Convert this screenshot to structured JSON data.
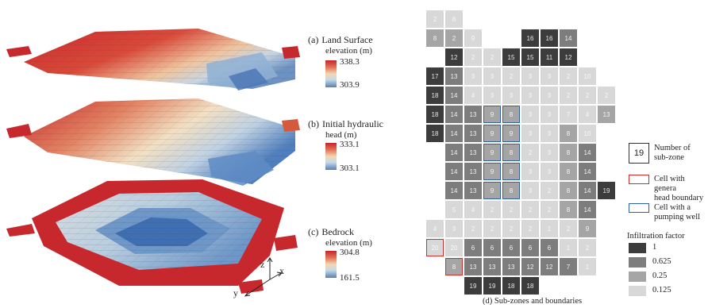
{
  "panels": [
    {
      "label": "(a)",
      "title_line1": "Land Surface",
      "title_line2": "elevation (m)",
      "max": "338.3",
      "min": "303.9"
    },
    {
      "label": "(b)",
      "title_line1": "Initial hydraulic",
      "title_line2": "head (m)",
      "max": "333.1",
      "min": "303.1"
    },
    {
      "label": "(c)",
      "title_line1": "Bedrock",
      "title_line2": "elevation (m)",
      "max": "304.8",
      "min": "161.5"
    }
  ],
  "axes": {
    "z": "z",
    "x": "x",
    "y": "y"
  },
  "grid": {
    "cells": [
      {
        "r": 0,
        "c": 0,
        "v": "2",
        "f": 4
      },
      {
        "r": 0,
        "c": 1,
        "v": "8",
        "f": 4
      },
      {
        "r": 1,
        "c": 0,
        "v": "8",
        "f": 3
      },
      {
        "r": 1,
        "c": 1,
        "v": "2",
        "f": 3
      },
      {
        "r": 1,
        "c": 2,
        "v": "9",
        "f": 4
      },
      {
        "r": 1,
        "c": 5,
        "v": "16",
        "f": 1
      },
      {
        "r": 1,
        "c": 6,
        "v": "16",
        "f": 1
      },
      {
        "r": 1,
        "c": 7,
        "v": "14",
        "f": 2
      },
      {
        "r": 2,
        "c": 1,
        "v": "12",
        "f": 1
      },
      {
        "r": 2,
        "c": 2,
        "v": "2",
        "f": 4
      },
      {
        "r": 2,
        "c": 3,
        "v": "2",
        "f": 4
      },
      {
        "r": 2,
        "c": 4,
        "v": "15",
        "f": 1
      },
      {
        "r": 2,
        "c": 5,
        "v": "15",
        "f": 1
      },
      {
        "r": 2,
        "c": 6,
        "v": "11",
        "f": 1
      },
      {
        "r": 2,
        "c": 7,
        "v": "12",
        "f": 1
      },
      {
        "r": 3,
        "c": 0,
        "v": "17",
        "f": 1
      },
      {
        "r": 3,
        "c": 1,
        "v": "13",
        "f": 2
      },
      {
        "r": 3,
        "c": 2,
        "v": "3",
        "f": 4
      },
      {
        "r": 3,
        "c": 3,
        "v": "3",
        "f": 4
      },
      {
        "r": 3,
        "c": 4,
        "v": "2",
        "f": 4
      },
      {
        "r": 3,
        "c": 5,
        "v": "3",
        "f": 4
      },
      {
        "r": 3,
        "c": 6,
        "v": "3",
        "f": 4
      },
      {
        "r": 3,
        "c": 7,
        "v": "2",
        "f": 4
      },
      {
        "r": 3,
        "c": 8,
        "v": "10",
        "f": 4
      },
      {
        "r": 4,
        "c": 0,
        "v": "18",
        "f": 1
      },
      {
        "r": 4,
        "c": 1,
        "v": "14",
        "f": 2
      },
      {
        "r": 4,
        "c": 2,
        "v": "4",
        "f": 4
      },
      {
        "r": 4,
        "c": 3,
        "v": "3",
        "f": 4
      },
      {
        "r": 4,
        "c": 4,
        "v": "3",
        "f": 4
      },
      {
        "r": 4,
        "c": 5,
        "v": "3",
        "f": 4
      },
      {
        "r": 4,
        "c": 6,
        "v": "3",
        "f": 4
      },
      {
        "r": 4,
        "c": 7,
        "v": "2",
        "f": 4
      },
      {
        "r": 4,
        "c": 8,
        "v": "2",
        "f": 4
      },
      {
        "r": 4,
        "c": 9,
        "v": "2",
        "f": 4
      },
      {
        "r": 5,
        "c": 0,
        "v": "18",
        "f": 1
      },
      {
        "r": 5,
        "c": 1,
        "v": "14",
        "f": 2
      },
      {
        "r": 5,
        "c": 2,
        "v": "13",
        "f": 2
      },
      {
        "r": 5,
        "c": 3,
        "v": "9",
        "f": 3,
        "p": 1
      },
      {
        "r": 5,
        "c": 4,
        "v": "8",
        "f": 3,
        "p": 1
      },
      {
        "r": 5,
        "c": 5,
        "v": "3",
        "f": 4
      },
      {
        "r": 5,
        "c": 6,
        "v": "3",
        "f": 4
      },
      {
        "r": 5,
        "c": 7,
        "v": "7",
        "f": 4
      },
      {
        "r": 5,
        "c": 8,
        "v": "4",
        "f": 4
      },
      {
        "r": 5,
        "c": 9,
        "v": "13",
        "f": 3
      },
      {
        "r": 6,
        "c": 0,
        "v": "18",
        "f": 1
      },
      {
        "r": 6,
        "c": 1,
        "v": "14",
        "f": 2
      },
      {
        "r": 6,
        "c": 2,
        "v": "13",
        "f": 2
      },
      {
        "r": 6,
        "c": 3,
        "v": "9",
        "f": 3,
        "p": 1
      },
      {
        "r": 6,
        "c": 4,
        "v": "9",
        "f": 3,
        "p": 1
      },
      {
        "r": 6,
        "c": 5,
        "v": "3",
        "f": 4
      },
      {
        "r": 6,
        "c": 6,
        "v": "3",
        "f": 4
      },
      {
        "r": 6,
        "c": 7,
        "v": "8",
        "f": 3
      },
      {
        "r": 6,
        "c": 8,
        "v": "10",
        "f": 4
      },
      {
        "r": 7,
        "c": 1,
        "v": "14",
        "f": 2
      },
      {
        "r": 7,
        "c": 2,
        "v": "13",
        "f": 2
      },
      {
        "r": 7,
        "c": 3,
        "v": "9",
        "f": 3,
        "p": 1
      },
      {
        "r": 7,
        "c": 4,
        "v": "8",
        "f": 3,
        "p": 1
      },
      {
        "r": 7,
        "c": 5,
        "v": "2",
        "f": 4
      },
      {
        "r": 7,
        "c": 6,
        "v": "3",
        "f": 4
      },
      {
        "r": 7,
        "c": 7,
        "v": "8",
        "f": 3
      },
      {
        "r": 7,
        "c": 8,
        "v": "14",
        "f": 2
      },
      {
        "r": 8,
        "c": 1,
        "v": "14",
        "f": 2
      },
      {
        "r": 8,
        "c": 2,
        "v": "13",
        "f": 2
      },
      {
        "r": 8,
        "c": 3,
        "v": "9",
        "f": 3,
        "p": 1
      },
      {
        "r": 8,
        "c": 4,
        "v": "8",
        "f": 3,
        "p": 1
      },
      {
        "r": 8,
        "c": 5,
        "v": "3",
        "f": 4
      },
      {
        "r": 8,
        "c": 6,
        "v": "3",
        "f": 4
      },
      {
        "r": 8,
        "c": 7,
        "v": "8",
        "f": 3
      },
      {
        "r": 8,
        "c": 8,
        "v": "14",
        "f": 2
      },
      {
        "r": 9,
        "c": 1,
        "v": "14",
        "f": 2
      },
      {
        "r": 9,
        "c": 2,
        "v": "13",
        "f": 2
      },
      {
        "r": 9,
        "c": 3,
        "v": "9",
        "f": 3,
        "p": 1
      },
      {
        "r": 9,
        "c": 4,
        "v": "8",
        "f": 3,
        "p": 1
      },
      {
        "r": 9,
        "c": 5,
        "v": "3",
        "f": 4
      },
      {
        "r": 9,
        "c": 6,
        "v": "2",
        "f": 4
      },
      {
        "r": 9,
        "c": 7,
        "v": "8",
        "f": 3
      },
      {
        "r": 9,
        "c": 8,
        "v": "14",
        "f": 2
      },
      {
        "r": 9,
        "c": 9,
        "v": "19",
        "f": 1
      },
      {
        "r": 10,
        "c": 1,
        "v": "5",
        "f": 4
      },
      {
        "r": 10,
        "c": 2,
        "v": "4",
        "f": 4
      },
      {
        "r": 10,
        "c": 3,
        "v": "2",
        "f": 4
      },
      {
        "r": 10,
        "c": 4,
        "v": "2",
        "f": 4
      },
      {
        "r": 10,
        "c": 5,
        "v": "2",
        "f": 4
      },
      {
        "r": 10,
        "c": 6,
        "v": "2",
        "f": 4
      },
      {
        "r": 10,
        "c": 7,
        "v": "8",
        "f": 3
      },
      {
        "r": 10,
        "c": 8,
        "v": "14",
        "f": 2
      },
      {
        "r": 11,
        "c": 0,
        "v": "4",
        "f": 4
      },
      {
        "r": 11,
        "c": 1,
        "v": "3",
        "f": 4
      },
      {
        "r": 11,
        "c": 2,
        "v": "2",
        "f": 4
      },
      {
        "r": 11,
        "c": 3,
        "v": "2",
        "f": 4
      },
      {
        "r": 11,
        "c": 4,
        "v": "2",
        "f": 4
      },
      {
        "r": 11,
        "c": 5,
        "v": "2",
        "f": 4
      },
      {
        "r": 11,
        "c": 6,
        "v": "1",
        "f": 4
      },
      {
        "r": 11,
        "c": 7,
        "v": "2",
        "f": 4
      },
      {
        "r": 11,
        "c": 8,
        "v": "9",
        "f": 3
      },
      {
        "r": 12,
        "c": 0,
        "v": "20",
        "f": 4,
        "g": 1
      },
      {
        "r": 12,
        "c": 1,
        "v": "20",
        "f": 4
      },
      {
        "r": 12,
        "c": 2,
        "v": "6",
        "f": 2
      },
      {
        "r": 12,
        "c": 3,
        "v": "6",
        "f": 2
      },
      {
        "r": 12,
        "c": 4,
        "v": "6",
        "f": 2
      },
      {
        "r": 12,
        "c": 5,
        "v": "6",
        "f": 2
      },
      {
        "r": 12,
        "c": 6,
        "v": "6",
        "f": 2
      },
      {
        "r": 12,
        "c": 7,
        "v": "1",
        "f": 4
      },
      {
        "r": 12,
        "c": 8,
        "v": "2",
        "f": 4
      },
      {
        "r": 13,
        "c": 1,
        "v": "8",
        "f": 3,
        "g": 1
      },
      {
        "r": 13,
        "c": 2,
        "v": "13",
        "f": 2
      },
      {
        "r": 13,
        "c": 3,
        "v": "13",
        "f": 2
      },
      {
        "r": 13,
        "c": 4,
        "v": "13",
        "f": 2
      },
      {
        "r": 13,
        "c": 5,
        "v": "12",
        "f": 2
      },
      {
        "r": 13,
        "c": 6,
        "v": "12",
        "f": 2
      },
      {
        "r": 13,
        "c": 7,
        "v": "7",
        "f": 2
      },
      {
        "r": 13,
        "c": 8,
        "v": "1",
        "f": 4
      },
      {
        "r": 14,
        "c": 2,
        "v": "19",
        "f": 1
      },
      {
        "r": 14,
        "c": 3,
        "v": "19",
        "f": 1
      },
      {
        "r": 14,
        "c": 4,
        "v": "18",
        "f": 1
      },
      {
        "r": 14,
        "c": 5,
        "v": "18",
        "f": 1
      }
    ]
  },
  "legend": {
    "sample_number": "19",
    "number_label_line1": "Number of",
    "number_label_line2": "sub-zone",
    "ghb_label_line1": "Cell with genera",
    "ghb_label_line2": "head boundary",
    "pump_label_line1": "Cell with a",
    "pump_label_line2": "pumping well",
    "infiltration_title": "Infiltration factor",
    "infiltration": [
      {
        "label": "1",
        "color": "#3c3c3c"
      },
      {
        "label": "0.625",
        "color": "#7d7d7d"
      },
      {
        "label": "0.25",
        "color": "#a5a5a5"
      },
      {
        "label": "0.125",
        "color": "#d8d8d8"
      }
    ]
  },
  "caption": "(d) Sub-zones and boundaries"
}
